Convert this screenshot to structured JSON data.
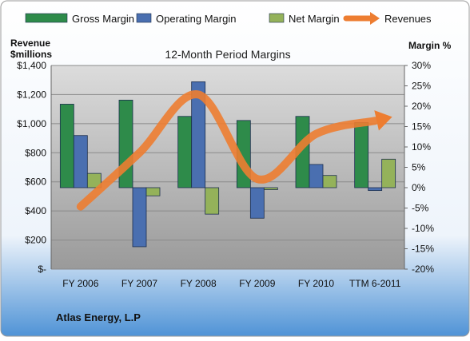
{
  "chart_data": {
    "type": "bar",
    "title": "12-Month Period Margins",
    "categories": [
      "FY 2006",
      "FY 2007",
      "FY 2008",
      "FY 2009",
      "FY 2010",
      "TTM 6-2011"
    ],
    "series": [
      {
        "name": "Gross Margin",
        "axis": "right",
        "values": [
          20.5,
          21.5,
          17.5,
          16.5,
          17.5,
          16
        ],
        "color": "#2e8b4a"
      },
      {
        "name": "Operating Margin",
        "axis": "right",
        "values": [
          12.8,
          -14.5,
          26,
          -7.5,
          5.7,
          -0.7
        ],
        "color": "#4a6fb0"
      },
      {
        "name": "Net Margin",
        "axis": "right",
        "values": [
          3.5,
          -2,
          -6.5,
          -0.5,
          3,
          7
        ],
        "color": "#94b25a"
      }
    ],
    "line_series": {
      "name": "Revenues",
      "axis": "left",
      "values": [
        430,
        800,
        1200,
        620,
        930,
        1020
      ],
      "color": "#ed7d31"
    },
    "left_axis": {
      "label_line1": "Revenue",
      "label_line2": "$millions",
      "ylim": [
        0,
        1400
      ],
      "ticks": [
        "$-",
        "$200",
        "$400",
        "$600",
        "$800",
        "$1,000",
        "$1,200",
        "$1,400"
      ]
    },
    "right_axis": {
      "label": "Margin %",
      "ylim": [
        -20,
        30
      ],
      "ticks": [
        "-20%",
        "-15%",
        "-10%",
        "-5%",
        "0%",
        "5%",
        "10%",
        "15%",
        "20%",
        "25%",
        "30%"
      ]
    },
    "grid": true,
    "legend_position": "top"
  },
  "footer": {
    "company": "Atlas Energy, L.P"
  },
  "colors": {
    "bg_top": "#ffffff",
    "bg_bottom": "#5b9bd5",
    "plot_top": "#d6d6d6",
    "plot_bottom": "#9a9a9a"
  }
}
